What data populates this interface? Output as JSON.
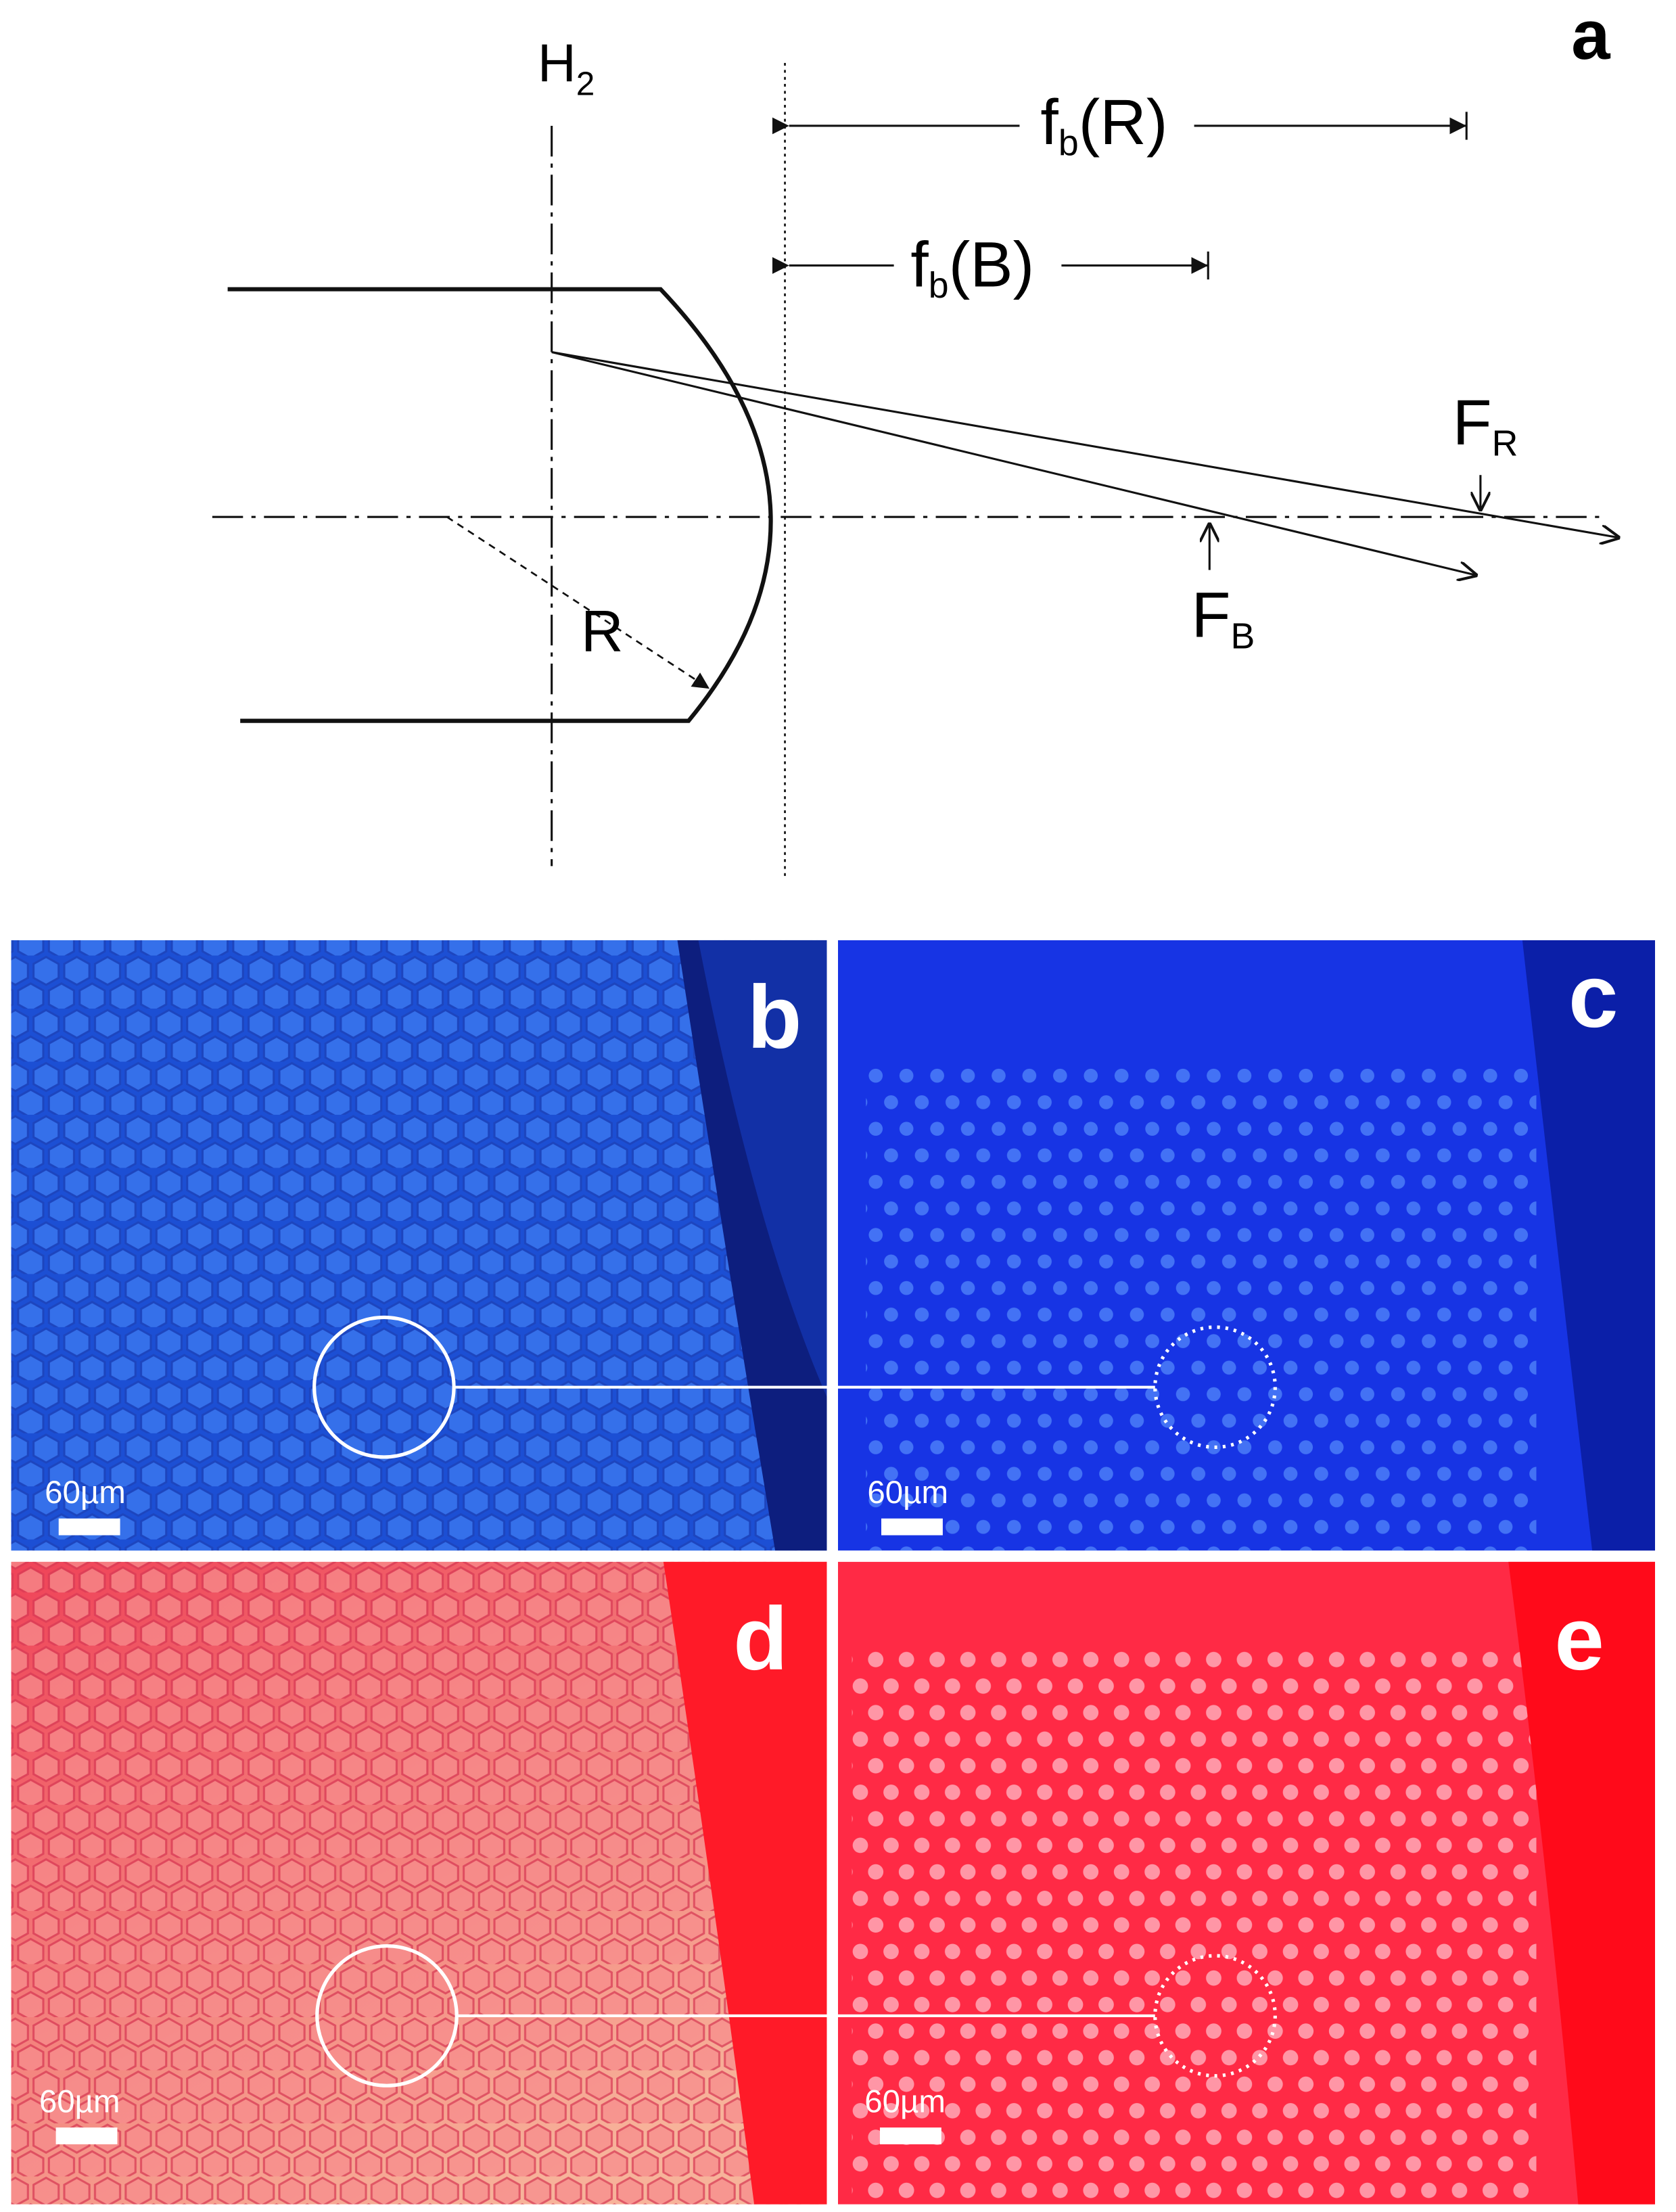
{
  "panel_a": {
    "label": "a",
    "h": "H",
    "h_sub": "2",
    "fb_r": {
      "f": "f",
      "sub": "b",
      "arg": "(R)"
    },
    "fb_b": {
      "f": "f",
      "sub": "b",
      "arg": "(B)"
    },
    "f_r": {
      "f": "F",
      "sub": "R"
    },
    "f_b": {
      "f": "F",
      "sub": "B"
    },
    "radius": "R"
  },
  "panels": [
    {
      "label": "b",
      "scale": "60µm"
    },
    {
      "label": "c",
      "scale": "60µm"
    },
    {
      "label": "d",
      "scale": "60µm"
    },
    {
      "label": "e",
      "scale": "60µm"
    }
  ]
}
